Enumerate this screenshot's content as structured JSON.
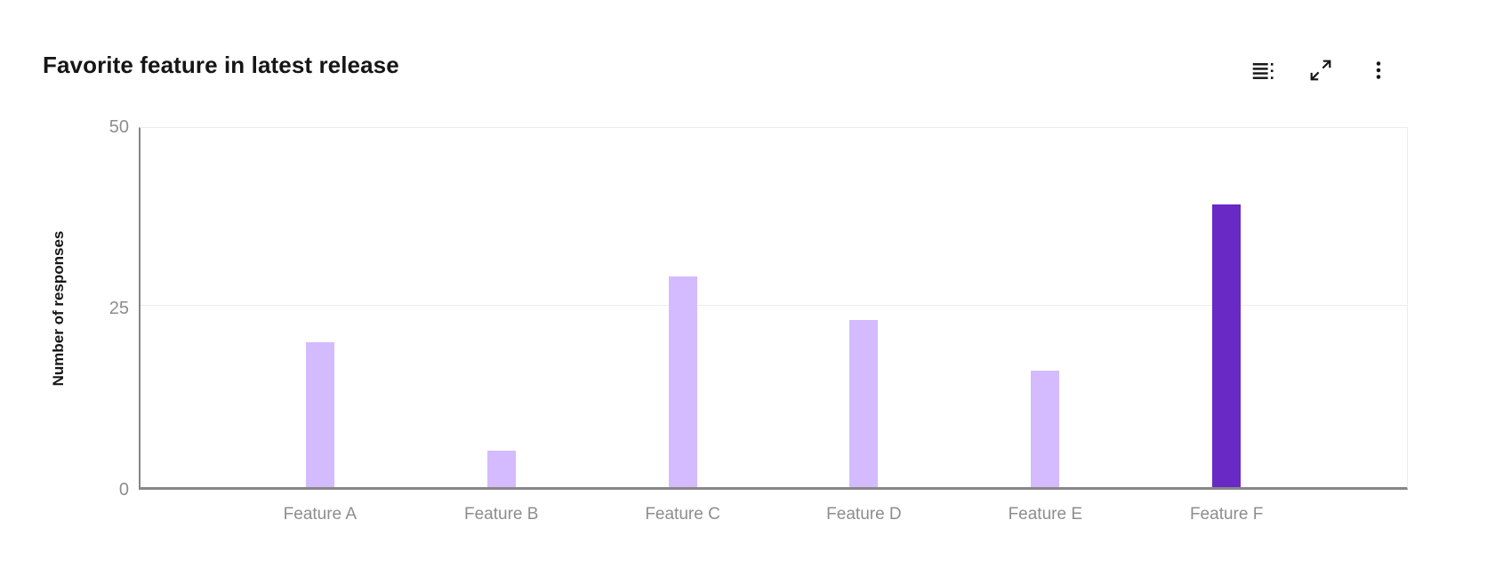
{
  "header": {
    "title": "Favorite feature in latest release"
  },
  "toolbar": {
    "buttons": [
      {
        "name": "show-data-table-button",
        "icon": "data-table-icon"
      },
      {
        "name": "expand-button",
        "icon": "expand-icon"
      },
      {
        "name": "overflow-menu-button",
        "icon": "overflow-menu-icon"
      }
    ]
  },
  "chart_data": {
    "type": "bar",
    "title": "Favorite feature in latest release",
    "categories": [
      "Feature A",
      "Feature B",
      "Feature C",
      "Feature D",
      "Feature E",
      "Feature F"
    ],
    "values": [
      20,
      5,
      29,
      23,
      16,
      39
    ],
    "xlabel": "",
    "ylabel": "Number of responses",
    "ylim": [
      0,
      50
    ],
    "yticks": [
      0,
      25,
      50
    ],
    "grid": "horizontal",
    "legend": "none",
    "highlight_index": 5
  },
  "colors": {
    "bar_default": "#d4bbff",
    "bar_highlight": "#6929c4",
    "axis_line": "#878787",
    "gridline": "#ececec",
    "tick_text": "#8d8d8d",
    "title_text": "#161616",
    "icon": "#161616"
  }
}
